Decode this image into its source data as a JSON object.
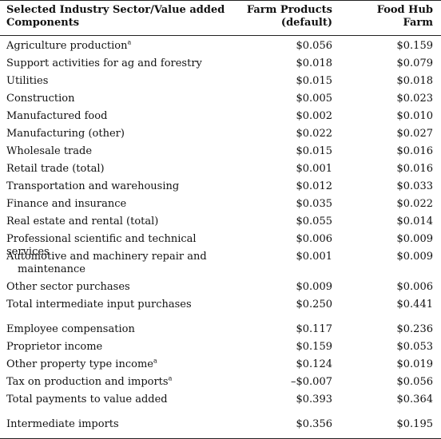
{
  "header": {
    "sector_label_line1": "Selected Industry Sector/Value added",
    "sector_label_line2": "Components",
    "farm_label_line1": "Farm Products",
    "farm_label_line2": "(default)",
    "hub_label_line1": "Food Hub",
    "hub_label_line2": "Farm"
  },
  "rows": [
    {
      "label": "Agriculture production",
      "sup": "a",
      "farm": "$0.056",
      "hub": "$0.159"
    },
    {
      "label": "Support activities for ag and forestry",
      "farm": "$0.018",
      "hub": "$0.079"
    },
    {
      "label": "Utilities",
      "farm": "$0.015",
      "hub": "$0.018"
    },
    {
      "label": "Construction",
      "farm": "$0.005",
      "hub": "$0.023"
    },
    {
      "label": "Manufactured food",
      "farm": "$0.002",
      "hub": "$0.010"
    },
    {
      "label": "Manufacturing (other)",
      "farm": "$0.022",
      "hub": "$0.027"
    },
    {
      "label": "Wholesale trade",
      "farm": "$0.015",
      "hub": "$0.016"
    },
    {
      "label": "Retail trade (total)",
      "farm": "$0.001",
      "hub": "$0.016"
    },
    {
      "label": "Transportation and warehousing",
      "farm": "$0.012",
      "hub": "$0.033"
    },
    {
      "label": "Finance and insurance",
      "farm": "$0.035",
      "hub": "$0.022"
    },
    {
      "label": "Real estate and rental (total)",
      "farm": "$0.055",
      "hub": "$0.014"
    },
    {
      "label": "Professional scientific and technical services",
      "farm": "$0.006",
      "hub": "$0.009"
    },
    {
      "label": "Automotive and machinery repair and",
      "label_cont": "maintenance",
      "farm": "$0.001",
      "hub": "$0.009"
    },
    {
      "label": "Other sector purchases",
      "farm": "$0.009",
      "hub": "$0.006"
    },
    {
      "label": "Total intermediate input purchases",
      "farm": "$0.250",
      "hub": "$0.441",
      "gap_after": true
    },
    {
      "label": "Employee compensation",
      "farm": "$0.117",
      "hub": "$0.236"
    },
    {
      "label": "Proprietor income",
      "farm": "$0.159",
      "hub": "$0.053"
    },
    {
      "label": "Other property type income",
      "sup": "a",
      "farm": "$0.124",
      "hub": "$0.019"
    },
    {
      "label": "Tax on production and imports",
      "sup": "a",
      "farm": "–$0.007",
      "hub": "$0.056"
    },
    {
      "label": "Total payments to value added",
      "farm": "$0.393",
      "hub": "$0.364",
      "gap_after": true
    },
    {
      "label": "Intermediate imports",
      "farm": "$0.356",
      "hub": "$0.195"
    }
  ]
}
